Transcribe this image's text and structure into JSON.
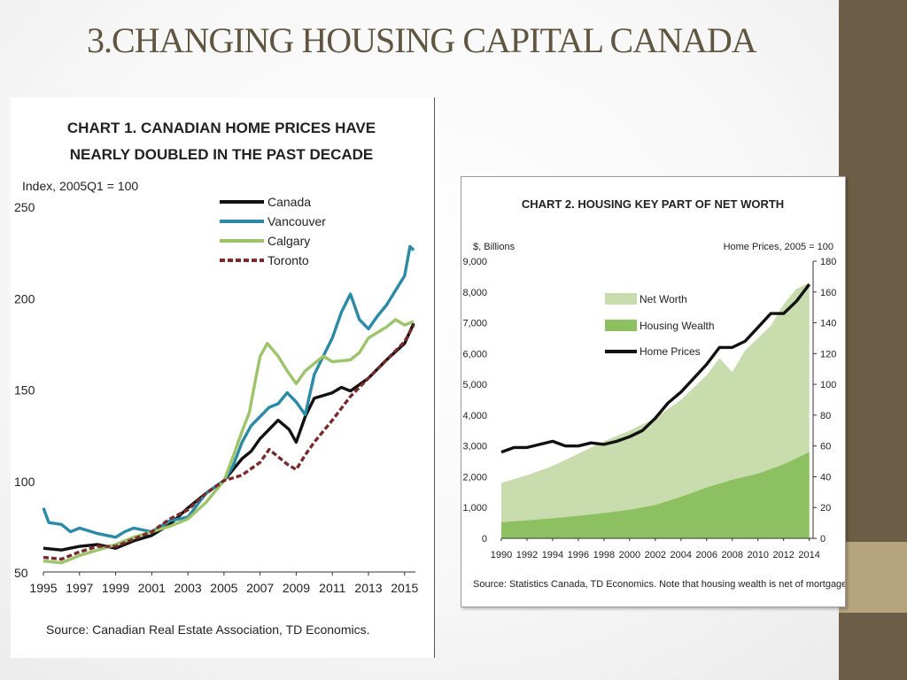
{
  "slide": {
    "title": "3.CHANGING HOUSING CAPITAL CANADA",
    "colors": {
      "side_bar": "#6b5d46",
      "side_accent": "#b5a47d",
      "title": "#5f5540"
    }
  },
  "chart_data": [
    {
      "type": "line",
      "title_line1": "CHART 1. CANADIAN HOME PRICES HAVE",
      "title_line2": "NEARLY DOUBLED IN THE PAST DECADE",
      "ylabel": "Index, 2005Q1 = 100",
      "ylim": [
        50,
        250
      ],
      "yticks": [
        "250",
        "200",
        "150",
        "100",
        "50"
      ],
      "xlim": [
        1995,
        2015.6
      ],
      "xticks": [
        "1995",
        "1997",
        "1999",
        "2001",
        "2003",
        "2005",
        "2007",
        "2009",
        "2011",
        "2013",
        "2015"
      ],
      "legend_position": "top-center",
      "source": "Source: Canadian Real Estate Association, TD Economics.",
      "series": [
        {
          "name": "Canada",
          "color": "#111111",
          "dash": "",
          "x": [
            1995,
            1996,
            1997,
            1998,
            1999,
            2000,
            2001,
            2002,
            2003,
            2004,
            2005,
            2006,
            2006.5,
            2007,
            2007.5,
            2008,
            2008.6,
            2009,
            2009.5,
            2010,
            2011,
            2011.5,
            2012,
            2013,
            2014,
            2015,
            2015.5
          ],
          "y": [
            63,
            62,
            64,
            65,
            63,
            67,
            70,
            76,
            85,
            93,
            100,
            112,
            116,
            123,
            128,
            133,
            128,
            121,
            135,
            145,
            148,
            151,
            149,
            156,
            166,
            175,
            186
          ]
        },
        {
          "name": "Vancouver",
          "color": "#2b8aa6",
          "dash": "",
          "x": [
            1995,
            1995.3,
            1996,
            1996.5,
            1997,
            1998,
            1998.5,
            1999,
            1999.5,
            2000,
            2000.5,
            2001,
            2002,
            2003,
            2004,
            2005,
            2005.5,
            2006,
            2006.5,
            2007,
            2007.5,
            2008,
            2008.5,
            2009,
            2009.5,
            2010,
            2010.5,
            2011,
            2011.5,
            2012,
            2012.5,
            2013,
            2013.5,
            2014,
            2015,
            2015.3,
            2015.5
          ],
          "y": [
            85,
            77,
            76,
            72,
            74,
            71,
            70,
            69,
            72,
            74,
            73,
            72,
            78,
            80,
            93,
            100,
            108,
            121,
            130,
            135,
            140,
            142,
            148,
            143,
            136,
            158,
            168,
            178,
            192,
            202,
            188,
            183,
            190,
            196,
            212,
            228,
            226
          ]
        },
        {
          "name": "Calgary",
          "color": "#9dc46a",
          "dash": "",
          "x": [
            1995,
            1996,
            1997,
            1998,
            1999,
            2000,
            2001,
            2002,
            2003,
            2004,
            2005,
            2005.5,
            2006,
            2006.4,
            2006.8,
            2007,
            2007.4,
            2008,
            2008.5,
            2009,
            2009.5,
            2010,
            2010.5,
            2011,
            2012,
            2012.5,
            2013,
            2014,
            2014.5,
            2015,
            2015.5
          ],
          "y": [
            56,
            55,
            59,
            62,
            65,
            69,
            72,
            75,
            79,
            88,
            100,
            113,
            127,
            137,
            158,
            168,
            175,
            168,
            160,
            153,
            160,
            164,
            168,
            165,
            166,
            170,
            178,
            184,
            188,
            185,
            187
          ]
        },
        {
          "name": "Toronto",
          "color": "#7a2a2a",
          "dash": "6,3",
          "x": [
            1995,
            1996,
            1997,
            1998,
            1999,
            2000,
            2001,
            2002,
            2003,
            2004,
            2005,
            2006,
            2007,
            2007.5,
            2008,
            2008.5,
            2009,
            2009.5,
            2010,
            2011,
            2012,
            2013,
            2014,
            2015,
            2015.5
          ],
          "y": [
            58,
            57,
            61,
            64,
            64,
            68,
            72,
            79,
            84,
            93,
            100,
            103,
            110,
            117,
            113,
            109,
            106,
            114,
            121,
            133,
            146,
            156,
            166,
            176,
            185
          ]
        }
      ]
    },
    {
      "type": "area",
      "title": "CHART 2. HOUSING KEY PART OF NET WORTH",
      "ylabel_left": "$, Billions",
      "ylabel_right": "Home Prices, 2005 = 100",
      "ylim_left": [
        0,
        9000
      ],
      "ylim_right": [
        0,
        180
      ],
      "yticks_left": [
        "9,000",
        "8,000",
        "7,000",
        "6,000",
        "5,000",
        "4,000",
        "3,000",
        "2,000",
        "1,000",
        "0"
      ],
      "yticks_right": [
        "180",
        "160",
        "140",
        "120",
        "100",
        "80",
        "60",
        "40",
        "20",
        "0"
      ],
      "xlim": [
        1990,
        2014.3
      ],
      "xticks": [
        "1990",
        "1992",
        "1994",
        "1996",
        "1998",
        "2000",
        "2002",
        "2004",
        "2006",
        "2008",
        "2010",
        "2012",
        "2014"
      ],
      "legend_position": "center",
      "source": "Source: Statistics Canada, TD Economics. Note that housing wealth is net of mortgages",
      "series": [
        {
          "name": "Net Worth",
          "kind": "area",
          "axis": "left",
          "color": "#c8dcae",
          "x": [
            1990,
            1992,
            1994,
            1996,
            1998,
            2000,
            2002,
            2004,
            2006,
            2007,
            2008,
            2009,
            2010,
            2011,
            2012,
            2013,
            2014
          ],
          "y": [
            1800,
            2050,
            2350,
            2750,
            3150,
            3500,
            3900,
            4500,
            5300,
            5850,
            5400,
            6100,
            6500,
            6900,
            7600,
            8100,
            8300
          ]
        },
        {
          "name": "Housing Wealth",
          "kind": "area",
          "axis": "left",
          "color": "#8cc060",
          "x": [
            1990,
            1992,
            1994,
            1996,
            1998,
            2000,
            2002,
            2004,
            2006,
            2008,
            2010,
            2012,
            2014
          ],
          "y": [
            520,
            580,
            650,
            730,
            820,
            930,
            1080,
            1350,
            1650,
            1900,
            2100,
            2400,
            2800
          ]
        },
        {
          "name": "Home Prices",
          "kind": "line",
          "axis": "right",
          "color": "#111111",
          "x": [
            1990,
            1991,
            1992,
            1993,
            1994,
            1995,
            1996,
            1997,
            1998,
            1999,
            2000,
            2001,
            2002,
            2003,
            2004,
            2005,
            2006,
            2007,
            2008,
            2009,
            2010,
            2011,
            2012,
            2013,
            2014
          ],
          "y": [
            56,
            59,
            59,
            61,
            63,
            60,
            60,
            62,
            61,
            63,
            66,
            70,
            78,
            88,
            95,
            104,
            113,
            124,
            124,
            128,
            137,
            146,
            146,
            154,
            165
          ]
        }
      ]
    }
  ]
}
